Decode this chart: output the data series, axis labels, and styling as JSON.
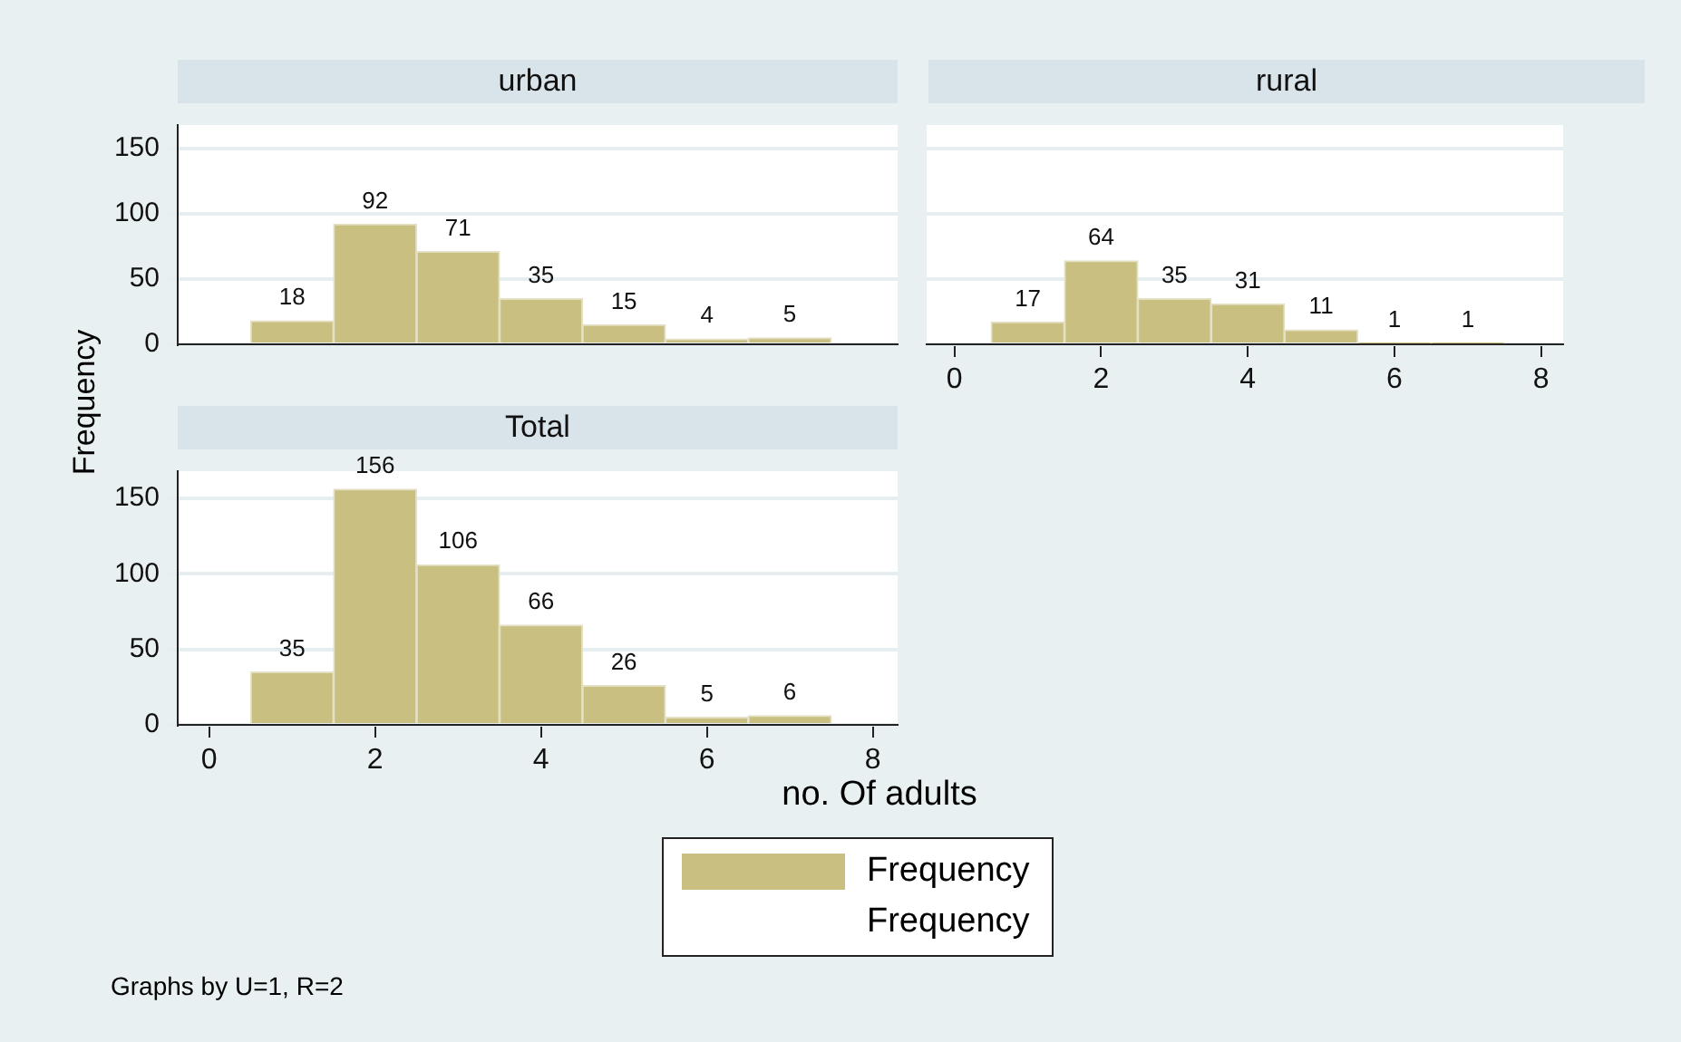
{
  "chart_data": [
    {
      "type": "histogram",
      "title": "urban",
      "ylabel": "Frequency",
      "bins": [
        0.5,
        1.5,
        2.5,
        3.5,
        4.5,
        5.5,
        6.5,
        7.5
      ],
      "series": [
        {
          "color": "#c8bf80",
          "values": [
            18,
            92,
            71,
            35,
            15,
            4,
            5
          ]
        }
      ],
      "xlim": [
        -0.38,
        8.3
      ],
      "ylim": [
        0,
        168
      ],
      "xticks": [
        0,
        2,
        4,
        6,
        8
      ],
      "yticks": [
        0,
        50,
        100,
        150
      ],
      "grid": "y",
      "data_labels": true,
      "tick_labels": "y"
    },
    {
      "type": "histogram",
      "title": "rural",
      "bins": [
        0.5,
        1.5,
        2.5,
        3.5,
        4.5,
        5.5,
        6.5,
        7.5
      ],
      "series": [
        {
          "color": "#c8bf80",
          "values": [
            17,
            64,
            35,
            31,
            11,
            1,
            1
          ]
        }
      ],
      "xlim": [
        -0.38,
        8.3
      ],
      "ylim": [
        0,
        168
      ],
      "xticks": [
        0,
        2,
        4,
        6,
        8
      ],
      "yticks": [
        0,
        50,
        100,
        150
      ],
      "grid": "y",
      "data_labels": true,
      "tick_labels": "x"
    },
    {
      "type": "histogram",
      "title": "Total",
      "xlabel": "no. Of adults",
      "bins": [
        0.5,
        1.5,
        2.5,
        3.5,
        4.5,
        5.5,
        6.5,
        7.5
      ],
      "series": [
        {
          "name": "Frequency",
          "color": "#c8bf80",
          "values": [
            35,
            156,
            106,
            66,
            26,
            5,
            6
          ]
        }
      ],
      "xlim": [
        -0.38,
        8.3
      ],
      "ylim": [
        0,
        168
      ],
      "xticks": [
        0,
        2,
        4,
        6,
        8
      ],
      "yticks": [
        0,
        50,
        100,
        150
      ],
      "grid": "y",
      "data_labels": true,
      "legend": "bottom",
      "annotations": [
        "Frequency",
        "Graphs by U=1, R=2"
      ]
    }
  ]
}
